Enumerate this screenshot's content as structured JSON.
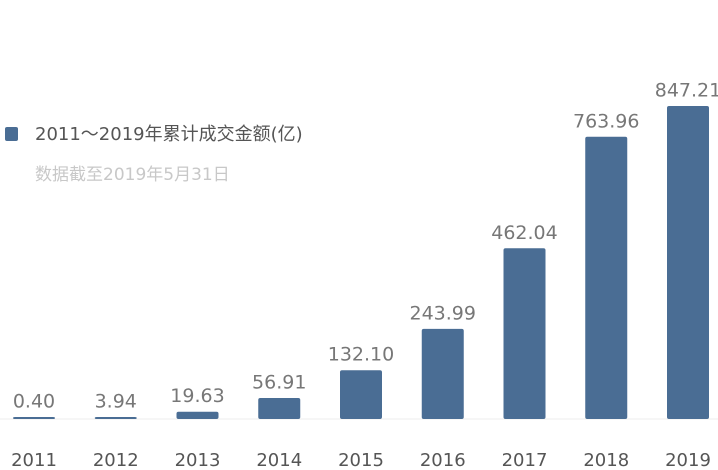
{
  "chart_data": {
    "type": "bar",
    "subtitle": "数据截至2019年5月31日",
    "categories": [
      "2011",
      "2012",
      "2013",
      "2014",
      "2015",
      "2016",
      "2017",
      "2018",
      "2019"
    ],
    "series": [
      {
        "name": "2011～2019年累计成交金额(亿)",
        "color": "#4a6d94",
        "values": [
          0.4,
          3.94,
          19.63,
          56.91,
          132.1,
          243.99,
          462.04,
          763.96,
          847.21
        ],
        "value_labels": [
          "0.40",
          "3.94",
          "19.63",
          "56.91",
          "132.10",
          "243.99",
          "462.04",
          "763.96",
          "847.21"
        ]
      }
    ]
  }
}
